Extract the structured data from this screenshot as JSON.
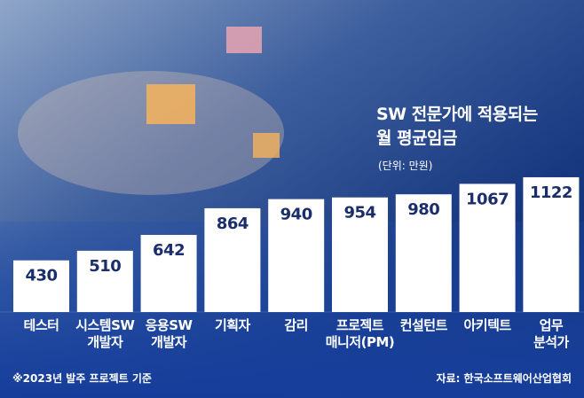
{
  "chart_data": {
    "type": "bar",
    "title": "SW 전문가에 적용되는\n월 평균임금",
    "subtitle": "(단위: 만원)",
    "categories": [
      "테스터",
      "시스템SW\n개발자",
      "응용SW\n개발자",
      "기획자",
      "감리",
      "프로젝트\n매니저(PM)",
      "컨설턴트",
      "아키텍트",
      "업무\n분석가"
    ],
    "values": [
      430,
      510,
      642,
      864,
      940,
      954,
      980,
      1067,
      1122
    ],
    "color": "#ffffff",
    "label_color": "#1b2d6b",
    "footnote": "※2023년 발주 프로젝트 기준",
    "source": "자료: 한국소프트웨어산업협회"
  }
}
